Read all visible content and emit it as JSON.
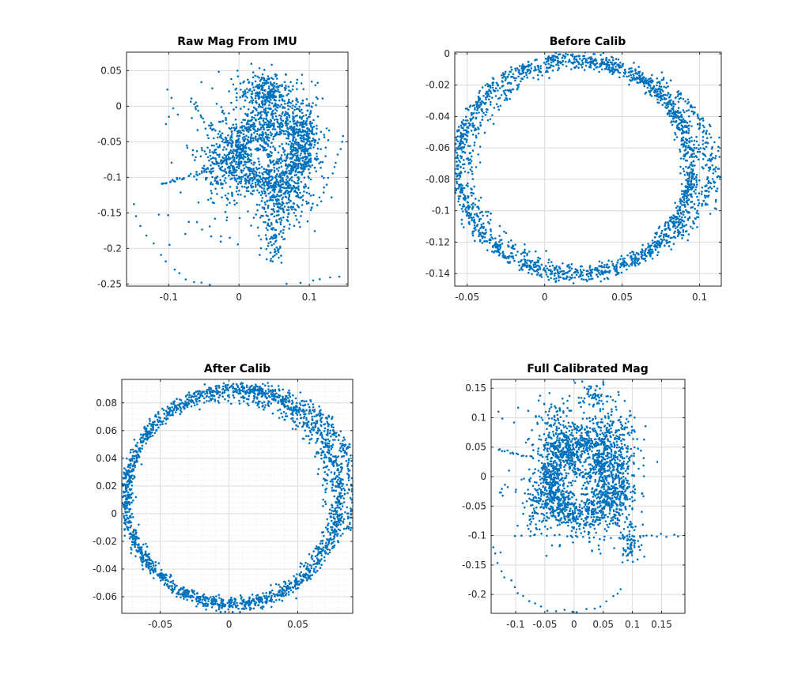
{
  "chart_data": [
    {
      "type": "scatter",
      "title": "Raw Mag From IMU",
      "xlim": [
        -0.16,
        0.155
      ],
      "ylim": [
        -0.253,
        0.076
      ],
      "xticks": [
        -0.1,
        0,
        0.1
      ],
      "xtick_labels": [
        "-0.1",
        "0",
        "0.1"
      ],
      "yticks": [
        0.05,
        0,
        -0.05,
        -0.1,
        -0.15,
        -0.2,
        -0.25
      ],
      "ytick_labels": [
        "0.05",
        "0",
        "-0.05",
        "-0.1",
        "-0.15",
        "-0.2",
        "-0.25"
      ],
      "grid": true,
      "minor_grid": false,
      "marker_color": "#0072BD",
      "series": [
        {
          "rings": [
            {
              "cx": 0.05,
              "cy": -0.06,
              "rx": 0.05,
              "ry": 0.05,
              "n": 520,
              "spread": 0.012
            },
            {
              "cx": 0.04,
              "cy": -0.07,
              "rx": 0.04,
              "ry": 0.04,
              "n": 360,
              "spread": 0.01
            },
            {
              "cx": 0.06,
              "cy": -0.05,
              "rx": 0.028,
              "ry": 0.026,
              "n": 160,
              "spread": 0.006
            }
          ],
          "blobs": [
            {
              "cx": 0.04,
              "cy": 0.02,
              "sx": 0.02,
              "sy": 0.014,
              "n": 280
            },
            {
              "cx": -0.02,
              "cy": -0.08,
              "sx": 0.018,
              "sy": 0.028,
              "n": 300
            },
            {
              "cx": 0.06,
              "cy": -0.13,
              "sx": 0.02,
              "sy": 0.022,
              "n": 280
            },
            {
              "cx": 0.09,
              "cy": -0.04,
              "sx": 0.015,
              "sy": 0.03,
              "n": 220
            },
            {
              "cx": 0.05,
              "cy": -0.19,
              "sx": 0.008,
              "sy": 0.015,
              "n": 60
            }
          ],
          "trails": [
            {
              "points": [
                [
                  -0.16,
                  -0.12
                ],
                [
                  -0.14,
                  -0.17
                ],
                [
                  -0.11,
                  -0.21
                ],
                [
                  -0.08,
                  -0.24
                ],
                [
                  -0.05,
                  -0.25
                ],
                [
                  0.0,
                  -0.26
                ],
                [
                  0.05,
                  -0.255
                ],
                [
                  0.1,
                  -0.245
                ],
                [
                  0.14,
                  -0.24
                ]
              ],
              "n": 26
            },
            {
              "points": [
                [
                  -0.11,
                  -0.11
                ],
                [
                  -0.08,
                  -0.1
                ],
                [
                  -0.04,
                  -0.09
                ]
              ],
              "n": 30
            },
            {
              "points": [
                [
                  -0.07,
                  0.01
                ],
                [
                  -0.05,
                  -0.02
                ],
                [
                  -0.02,
                  -0.05
                ]
              ],
              "n": 18
            },
            {
              "points": [
                [
                  0.15,
                  -0.04
                ],
                [
                  0.13,
                  -0.1
                ],
                [
                  0.11,
                  -0.14
                ]
              ],
              "n": 14
            }
          ],
          "scatter": {
            "x": [
              -0.12,
              0.05
            ],
            "y": [
              -0.2,
              0.05
            ],
            "n": 60
          }
        }
      ]
    },
    {
      "type": "scatter",
      "title": "Before Calib",
      "xlim": [
        -0.058,
        0.114
      ],
      "ylim": [
        -0.148,
        0.001
      ],
      "xticks": [
        -0.05,
        0,
        0.05,
        0.1
      ],
      "xtick_labels": [
        "-0.05",
        "0",
        "0.05",
        "0.1"
      ],
      "yticks": [
        0,
        -0.02,
        -0.04,
        -0.06,
        -0.08,
        -0.1,
        -0.12,
        -0.14
      ],
      "ytick_labels": [
        "0",
        "-0.02",
        "-0.04",
        "-0.06",
        "-0.08",
        "-0.1",
        "-0.12",
        "-0.14"
      ],
      "grid": true,
      "minor_grid": false,
      "marker_color": "#0072BD",
      "series": [
        {
          "rings": [
            {
              "cx": 0.019,
              "cy": -0.072,
              "rx": 0.075,
              "ry": 0.069,
              "n": 1500,
              "spread": 0.0025
            },
            {
              "cx": 0.024,
              "cy": -0.072,
              "rx": 0.072,
              "ry": 0.065,
              "n": 500,
              "spread": 0.0025
            },
            {
              "cx": 0.03,
              "cy": -0.07,
              "rx": 0.078,
              "ry": 0.064,
              "n": 250,
              "spread": 0.003,
              "arc": [
                -1.2,
                1.0
              ]
            }
          ],
          "blobs": [],
          "trails": [
            {
              "points": [
                [
                  0.095,
                  -0.055
                ],
                [
                  0.103,
                  -0.065
                ],
                [
                  0.11,
                  -0.075
                ],
                [
                  0.112,
                  -0.09
                ],
                [
                  0.108,
                  -0.1
                ]
              ],
              "n": 20
            }
          ],
          "scatter": null
        }
      ]
    },
    {
      "type": "scatter",
      "title": "After Calib",
      "xlim": [
        -0.078,
        0.09
      ],
      "ylim": [
        -0.072,
        0.097
      ],
      "xticks": [
        -0.05,
        0,
        0.05
      ],
      "xtick_labels": [
        "-0.05",
        "0",
        "0.05"
      ],
      "yticks": [
        0.08,
        0.06,
        0.04,
        0.02,
        0,
        -0.02,
        -0.04,
        -0.06
      ],
      "ytick_labels": [
        "0.08",
        "0.06",
        "0.04",
        "0.02",
        "0",
        "-0.02",
        "-0.04",
        "-0.06"
      ],
      "grid": true,
      "minor_grid": true,
      "marker_color": "#0072BD",
      "series": [
        {
          "rings": [
            {
              "cx": 0.003,
              "cy": 0.012,
              "rx": 0.078,
              "ry": 0.078,
              "n": 1500,
              "spread": 0.0022
            },
            {
              "cx": 0.0,
              "cy": 0.01,
              "rx": 0.074,
              "ry": 0.074,
              "n": 500,
              "spread": 0.0022
            },
            {
              "cx": 0.012,
              "cy": 0.015,
              "rx": 0.08,
              "ry": 0.076,
              "n": 260,
              "spread": 0.0025,
              "arc": [
                -0.4,
                1.5
              ]
            }
          ],
          "blobs": [],
          "trails": [
            {
              "points": [
                [
                  0.06,
                  0.08
                ],
                [
                  0.075,
                  0.06
                ],
                [
                  0.085,
                  0.04
                ],
                [
                  0.088,
                  0.02
                ]
              ],
              "n": 22
            }
          ],
          "scatter": null
        }
      ]
    },
    {
      "type": "scatter",
      "title": "Full Calibrated Mag",
      "xlim": [
        -0.142,
        0.19
      ],
      "ylim": [
        -0.232,
        0.165
      ],
      "xticks": [
        -0.1,
        -0.05,
        0,
        0.05,
        0.1,
        0.15
      ],
      "xtick_labels": [
        "-0.1",
        "-0.05",
        "0",
        "0.05",
        "0.1",
        "0.15"
      ],
      "yticks": [
        0.15,
        0.1,
        0.05,
        0,
        -0.05,
        -0.1,
        -0.15,
        -0.2
      ],
      "ytick_labels": [
        "0.15",
        "0.1",
        "0.05",
        "0",
        "-0.05",
        "-0.1",
        "-0.15",
        "-0.2"
      ],
      "grid": true,
      "minor_grid": false,
      "marker_color": "#0072BD",
      "series": [
        {
          "rings": [
            {
              "cx": 0.02,
              "cy": 0.0,
              "rx": 0.065,
              "ry": 0.075,
              "n": 520,
              "spread": 0.012
            },
            {
              "cx": 0.01,
              "cy": -0.01,
              "rx": 0.05,
              "ry": 0.055,
              "n": 360,
              "spread": 0.01
            },
            {
              "cx": 0.02,
              "cy": 0.03,
              "rx": 0.03,
              "ry": 0.028,
              "n": 160,
              "spread": 0.006
            }
          ],
          "blobs": [
            {
              "cx": -0.03,
              "cy": 0.05,
              "sx": 0.02,
              "sy": 0.04,
              "n": 280
            },
            {
              "cx": 0.06,
              "cy": 0.06,
              "sx": 0.025,
              "sy": 0.035,
              "n": 260
            },
            {
              "cx": -0.04,
              "cy": -0.04,
              "sx": 0.025,
              "sy": 0.025,
              "n": 260
            },
            {
              "cx": 0.06,
              "cy": -0.04,
              "sx": 0.025,
              "sy": 0.03,
              "n": 260
            },
            {
              "cx": 0.03,
              "cy": 0.14,
              "sx": 0.015,
              "sy": 0.01,
              "n": 50
            },
            {
              "cx": 0.095,
              "cy": -0.11,
              "sx": 0.008,
              "sy": 0.015,
              "n": 60
            }
          ],
          "trails": [
            {
              "points": [
                [
                  -0.14,
                  -0.12
                ],
                [
                  -0.12,
                  -0.17
                ],
                [
                  -0.09,
                  -0.2
                ],
                [
                  -0.05,
                  -0.225
                ],
                [
                  0.0,
                  -0.232
                ],
                [
                  0.05,
                  -0.22
                ],
                [
                  0.08,
                  -0.19
                ]
              ],
              "n": 24
            },
            {
              "points": [
                [
                  -0.1,
                  -0.1
                ],
                [
                  -0.02,
                  -0.1
                ],
                [
                  0.05,
                  -0.105
                ],
                [
                  0.12,
                  -0.1
                ],
                [
                  0.19,
                  -0.1
                ]
              ],
              "n": 30
            },
            {
              "points": [
                [
                  -0.13,
                  0.045
                ],
                [
                  -0.1,
                  0.04
                ],
                [
                  -0.07,
                  0.03
                ]
              ],
              "n": 16
            }
          ],
          "scatter": {
            "x": [
              -0.13,
              0.12
            ],
            "y": [
              -0.14,
              0.14
            ],
            "n": 70
          }
        }
      ]
    }
  ]
}
